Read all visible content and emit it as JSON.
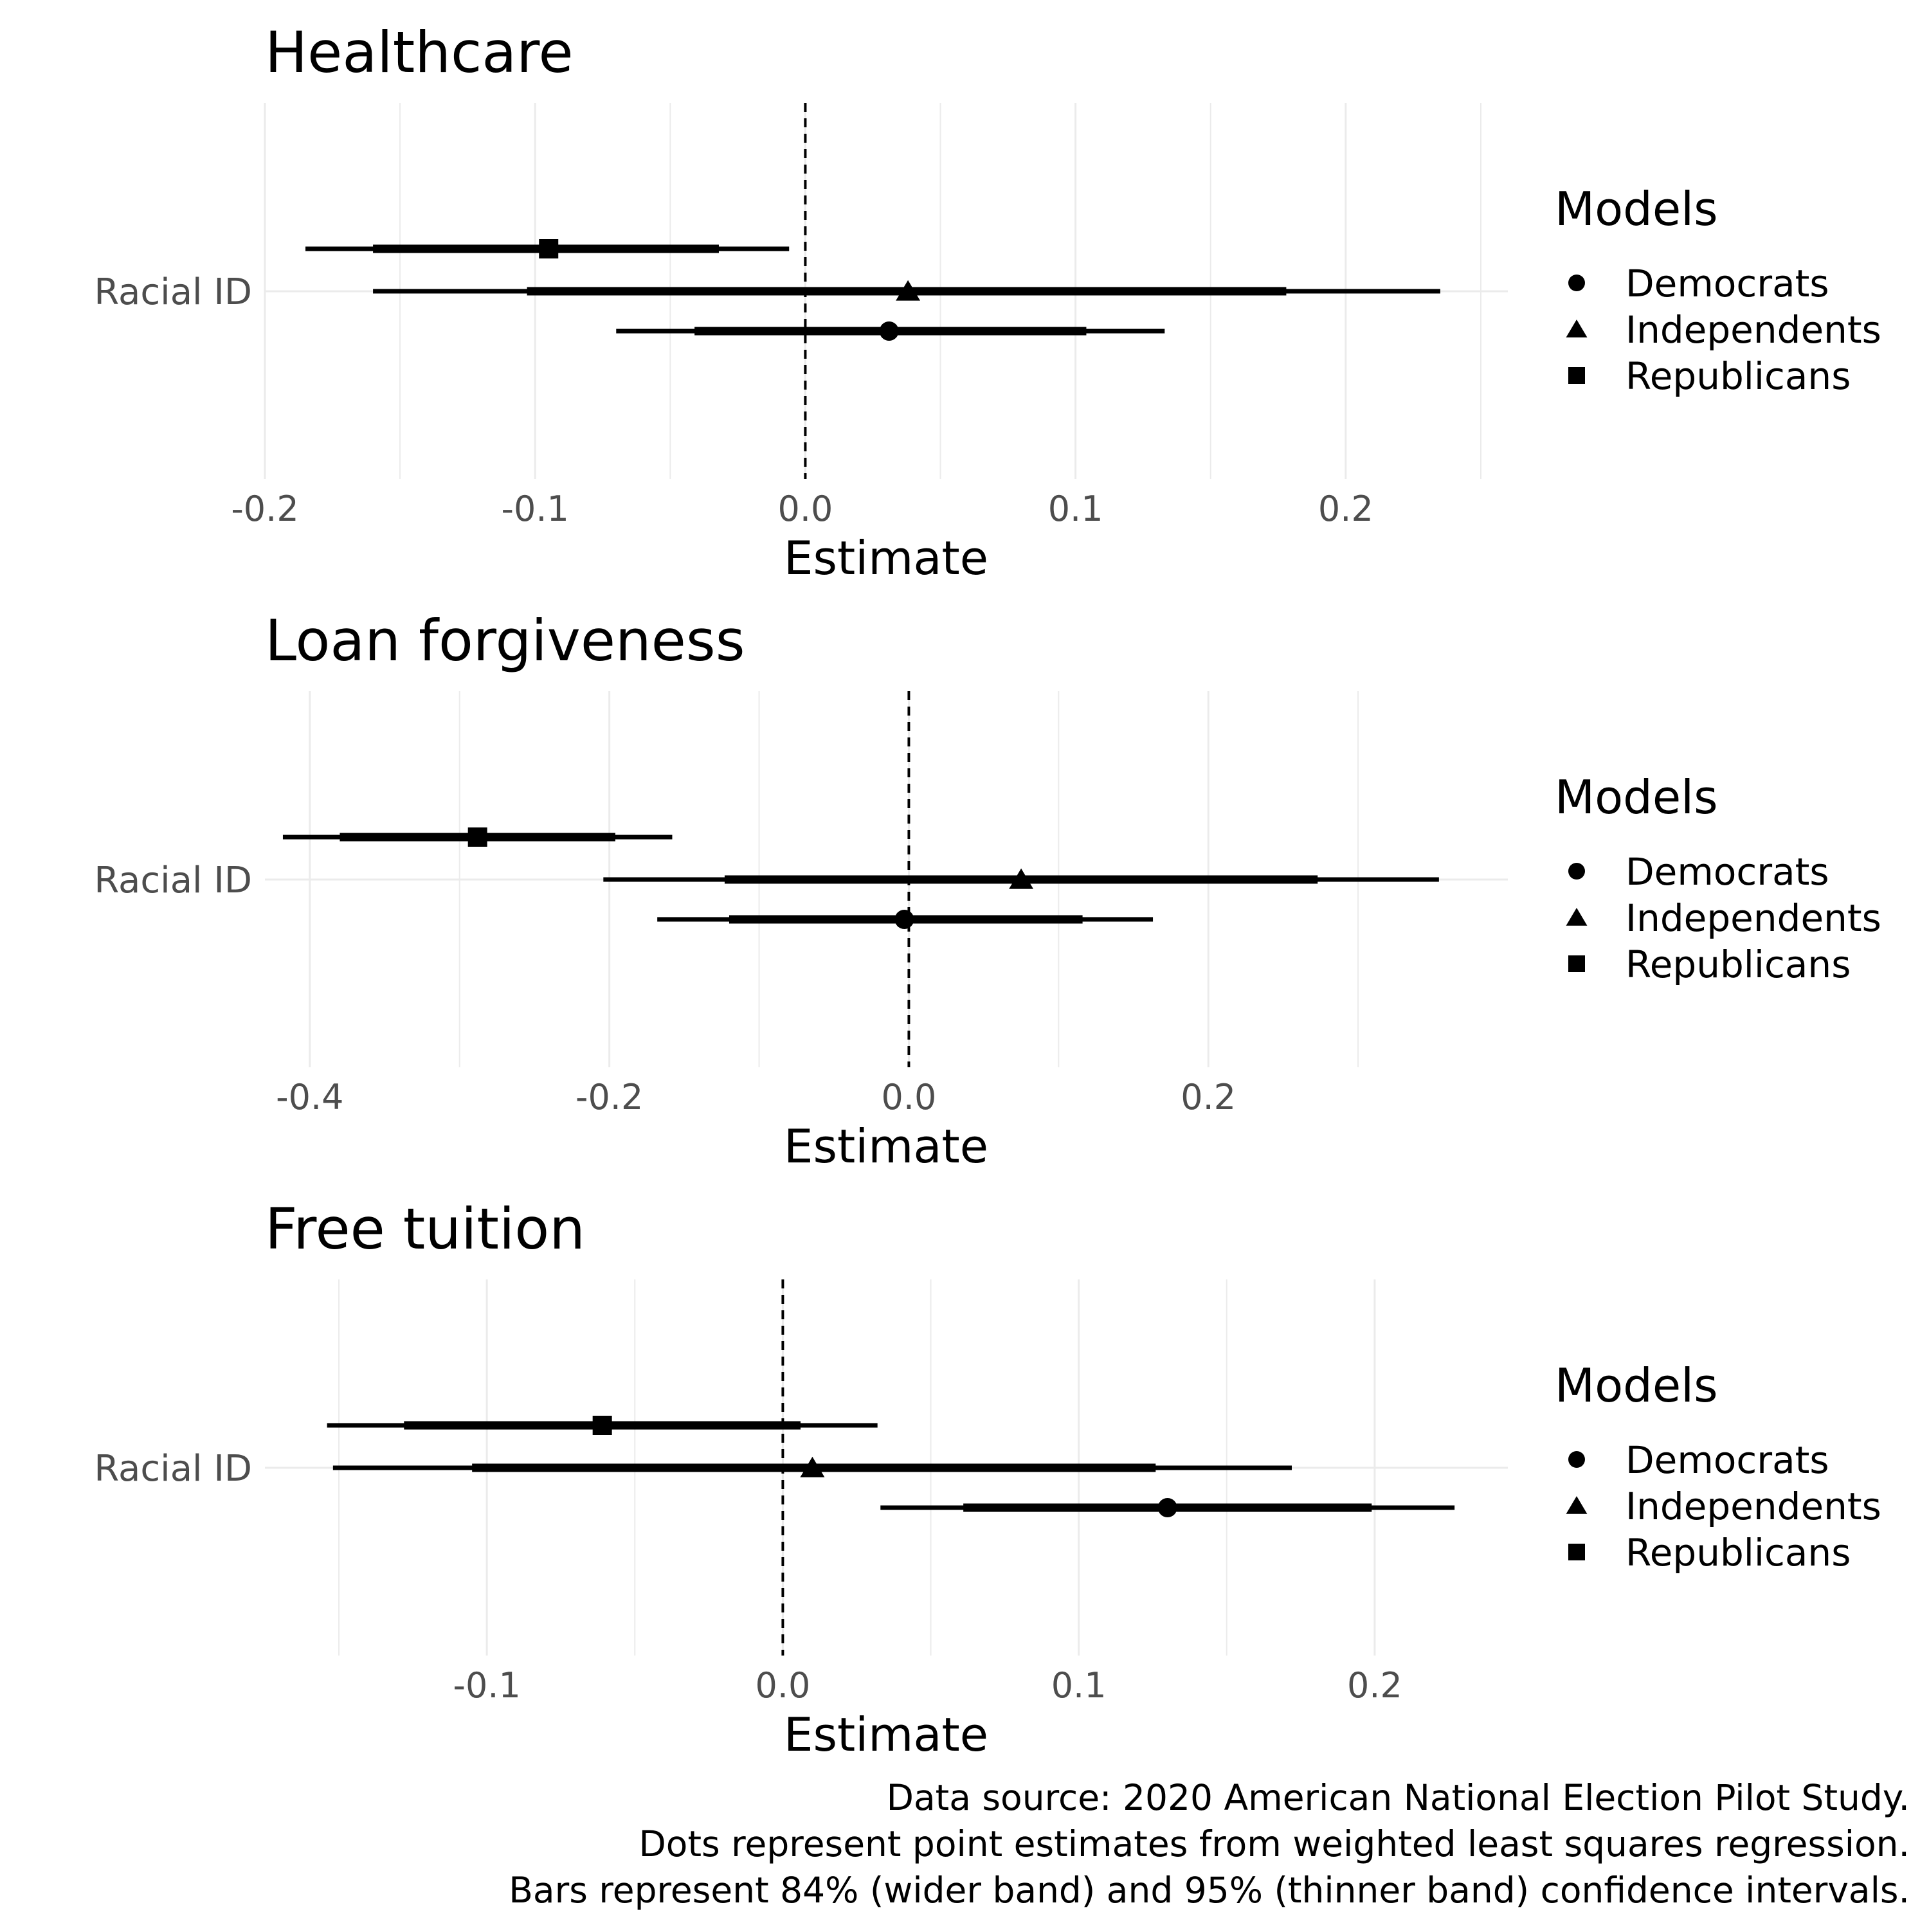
{
  "chart_data": [
    {
      "type": "coefficient-plot",
      "title": "Healthcare",
      "xlabel": "Estimate",
      "category": "Racial ID",
      "xlim": [
        -0.2,
        0.26
      ],
      "ticks": [
        -0.2,
        -0.1,
        0.0,
        0.1,
        0.2
      ],
      "tick_labels": [
        "-0.2",
        "-0.1",
        "0.0",
        "0.1",
        "0.2"
      ],
      "reference_line": 0,
      "series": [
        {
          "name": "Republicans",
          "shape": "square",
          "estimate": -0.095,
          "ci84": [
            -0.16,
            -0.032
          ],
          "ci95": [
            -0.185,
            -0.006
          ]
        },
        {
          "name": "Independents",
          "shape": "triangle",
          "estimate": 0.038,
          "ci84": [
            -0.103,
            0.178
          ],
          "ci95": [
            -0.16,
            0.235
          ]
        },
        {
          "name": "Democrats",
          "shape": "circle",
          "estimate": 0.031,
          "ci84": [
            -0.041,
            0.104
          ],
          "ci95": [
            -0.07,
            0.133
          ]
        }
      ],
      "legend": {
        "title": "Models",
        "position": "right"
      },
      "grid": true
    },
    {
      "type": "coefficient-plot",
      "title": "Loan forgiveness",
      "xlabel": "Estimate",
      "category": "Racial ID",
      "xlim": [
        -0.43,
        0.4
      ],
      "ticks": [
        -0.4,
        -0.2,
        0.0,
        0.2
      ],
      "tick_labels": [
        "-0.4",
        "-0.2",
        "0.0",
        "0.2"
      ],
      "reference_line": 0,
      "series": [
        {
          "name": "Republicans",
          "shape": "square",
          "estimate": -0.288,
          "ci84": [
            -0.38,
            -0.196
          ],
          "ci95": [
            -0.418,
            -0.158
          ]
        },
        {
          "name": "Independents",
          "shape": "triangle",
          "estimate": 0.075,
          "ci84": [
            -0.123,
            0.273
          ],
          "ci95": [
            -0.204,
            0.354
          ]
        },
        {
          "name": "Democrats",
          "shape": "circle",
          "estimate": -0.003,
          "ci84": [
            -0.12,
            0.116
          ],
          "ci95": [
            -0.168,
            0.163
          ]
        }
      ],
      "legend": {
        "title": "Models",
        "position": "right"
      },
      "grid": true
    },
    {
      "type": "coefficient-plot",
      "title": "Free tuition",
      "xlabel": "Estimate",
      "category": "Racial ID",
      "xlim": [
        -0.175,
        0.245
      ],
      "ticks": [
        -0.1,
        0.0,
        0.1,
        0.2
      ],
      "tick_labels": [
        "-0.1",
        "0.0",
        "0.1",
        "0.2"
      ],
      "reference_line": 0,
      "series": [
        {
          "name": "Republicans",
          "shape": "square",
          "estimate": -0.061,
          "ci84": [
            -0.128,
            0.006
          ],
          "ci95": [
            -0.154,
            0.032
          ]
        },
        {
          "name": "Independents",
          "shape": "triangle",
          "estimate": 0.01,
          "ci84": [
            -0.105,
            0.126
          ],
          "ci95": [
            -0.152,
            0.172
          ]
        },
        {
          "name": "Democrats",
          "shape": "circle",
          "estimate": 0.13,
          "ci84": [
            0.061,
            0.199
          ],
          "ci95": [
            0.033,
            0.227
          ]
        }
      ],
      "legend": {
        "title": "Models",
        "position": "right"
      },
      "grid": true
    }
  ],
  "legend_entries": [
    {
      "name": "Democrats",
      "shape": "circle"
    },
    {
      "name": "Independents",
      "shape": "triangle"
    },
    {
      "name": "Republicans",
      "shape": "square"
    }
  ],
  "caption": [
    "Data source: 2020 American National Election Pilot Study.",
    "Dots represent point estimates from weighted least squares regression.",
    "Bars represent 84% (wider band) and 95% (thinner band) confidence intervals."
  ],
  "colors": {
    "ink": "#000000",
    "grid": "#ebebeb",
    "tick_text": "#4d4d4d"
  }
}
